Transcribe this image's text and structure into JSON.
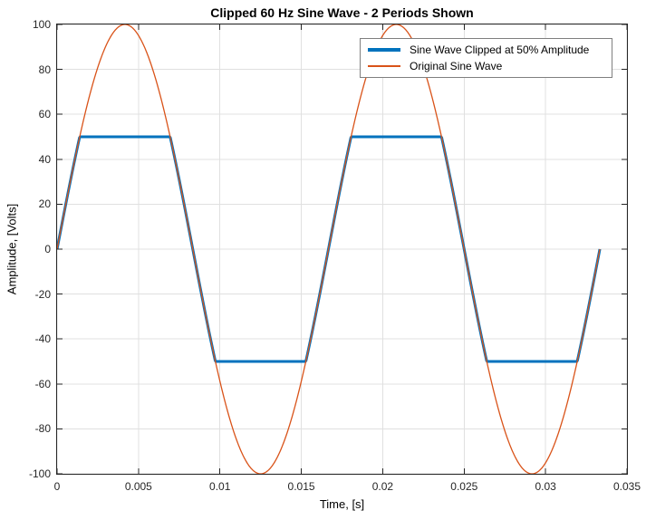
{
  "chart_data": {
    "type": "line",
    "title": "Clipped 60 Hz Sine Wave - 2 Periods Shown",
    "xlabel": "Time, [s]",
    "ylabel": "Amplitude, [Volts]",
    "xlim": [
      0,
      0.035
    ],
    "ylim": [
      -100,
      100
    ],
    "x_ticks": [
      0,
      0.005,
      0.01,
      0.015,
      0.02,
      0.025,
      0.03,
      0.035
    ],
    "x_tick_labels": [
      "0",
      "0.005",
      "0.01",
      "0.015",
      "0.02",
      "0.025",
      "0.03",
      "0.035"
    ],
    "y_ticks": [
      100,
      80,
      60,
      40,
      20,
      0,
      -20,
      -40,
      -60,
      -80,
      -100
    ],
    "y_tick_labels": [
      "100",
      "80",
      "60",
      "40",
      "20",
      "0",
      "-20",
      "-40",
      "-60",
      "-80",
      "-100"
    ],
    "grid": true,
    "grid_color": "#e0e0e0",
    "axes_color": "#262626",
    "legend_position": "northeast",
    "series": [
      {
        "name": "Sine Wave Clipped at 50% Amplitude",
        "color": "#0072BD",
        "line_width": 3,
        "signal": {
          "kind": "clipped_sine",
          "frequency_hz": 60,
          "amplitude": 100,
          "clip_level": 50,
          "clip_percent": 50,
          "t_start": 0,
          "t_end": 0.0333333,
          "periods_shown": 2
        }
      },
      {
        "name": "Original Sine Wave",
        "color": "#D95319",
        "line_width": 1.3,
        "signal": {
          "kind": "sine",
          "frequency_hz": 60,
          "amplitude": 100,
          "t_start": 0,
          "t_end": 0.0333333,
          "periods_shown": 2
        }
      }
    ]
  }
}
